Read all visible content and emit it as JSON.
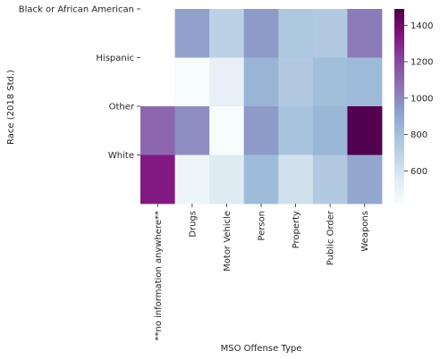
{
  "chart_data": {
    "type": "heatmap",
    "xlabel": "MSO Offense Type",
    "ylabel": "Race (2018 Std.)",
    "x_categories": [
      "**no information anywhere**",
      "Drugs",
      "Motor Vehicle",
      "Person",
      "Property",
      "Public Order",
      "Weapons"
    ],
    "y_categories": [
      "Black or African American",
      "Hispanic",
      "Other",
      "White"
    ],
    "values": [
      [
        null,
        920,
        700,
        940,
        760,
        740,
        1040
      ],
      [
        null,
        420,
        520,
        850,
        740,
        810,
        830
      ],
      [
        1100,
        980,
        420,
        940,
        780,
        840,
        1480
      ],
      [
        1330,
        480,
        560,
        820,
        620,
        740,
        900
      ]
    ],
    "colorbar": {
      "colormap": "BuPu",
      "range": [
        420,
        1490
      ],
      "ticks": [
        600,
        800,
        1000,
        1200,
        1400
      ],
      "tick_labels": [
        "600",
        "800",
        "1000",
        "1200",
        "1400"
      ]
    }
  }
}
